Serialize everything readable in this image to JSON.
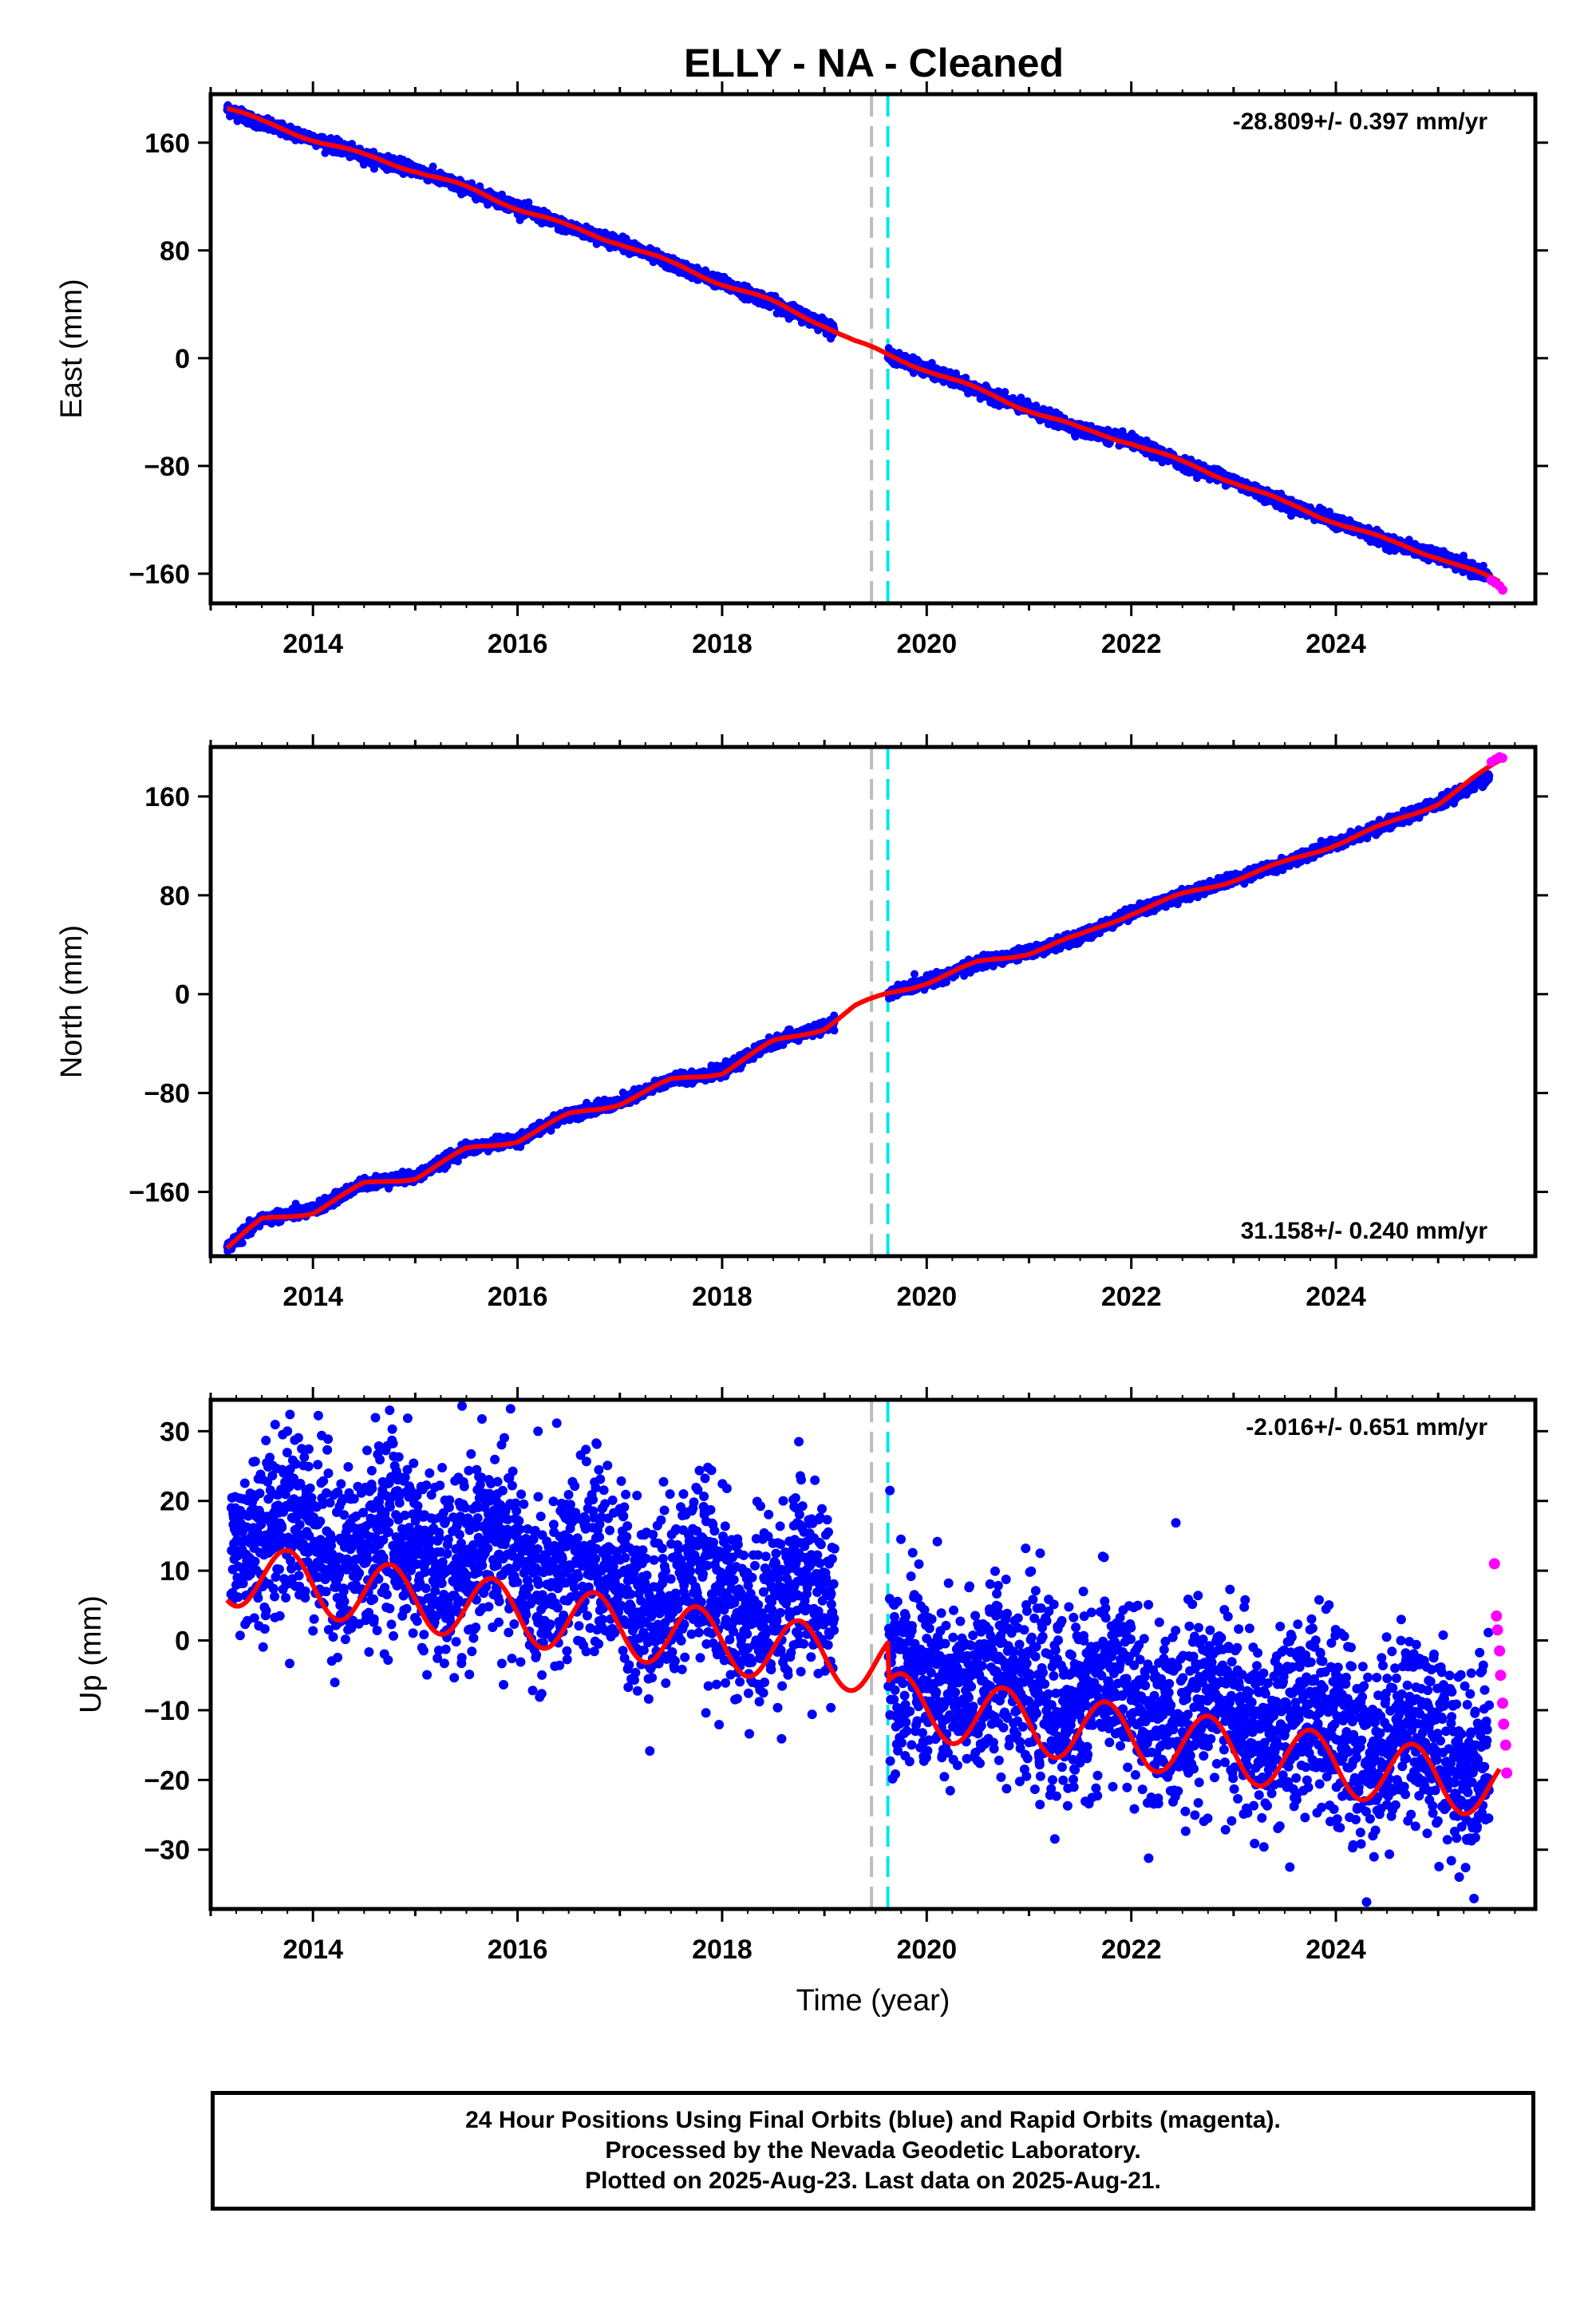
{
  "figure_title": "ELLY  - NA - Cleaned",
  "chart_data": [
    {
      "type": "scatter",
      "ylabel": "East (mm)",
      "xlabel": "",
      "xlim": [
        2013.0,
        2025.95
      ],
      "ylim": [
        -182,
        196
      ],
      "xticks": [
        2014,
        2016,
        2018,
        2020,
        2022,
        2024
      ],
      "yticks": [
        160,
        80,
        0,
        -80,
        -160
      ],
      "ytick_labels": [
        "160",
        "80",
        "0",
        "−80",
        "−160"
      ],
      "rate_label": "-28.809+/- 0.397 mm/yr",
      "rate_position": "top-right",
      "reference_lines": [
        {
          "x": 2019.46,
          "color": "#bdbdbd",
          "style": "dashed"
        },
        {
          "x": 2019.62,
          "color": "#00e5ee",
          "style": "dashed"
        }
      ],
      "gap": [
        2019.1,
        2019.62
      ],
      "series": [
        {
          "role": "final_orbits",
          "color": "#0000ff",
          "x": [
            2013.16,
            2013.5,
            2014.0,
            2014.5,
            2015.0,
            2015.5,
            2016.0,
            2016.5,
            2017.0,
            2017.5,
            2018.0,
            2018.5,
            2019.0,
            2019.62,
            2020.0,
            2020.5,
            2021.0,
            2021.5,
            2022.0,
            2022.5,
            2023.0,
            2023.5,
            2024.0,
            2024.5,
            2025.0,
            2025.5
          ],
          "y": [
            185,
            174,
            163,
            150,
            140,
            126,
            112,
            97,
            86,
            70,
            56,
            41,
            25,
            2,
            -8,
            -24,
            -38,
            -53,
            -62,
            -78,
            -91,
            -108,
            -121,
            -136,
            -147,
            -162
          ]
        },
        {
          "role": "rapid_orbits",
          "color": "#ff00ff",
          "x": [
            2025.52,
            2025.56,
            2025.6,
            2025.63
          ],
          "y": [
            -165,
            -167,
            -169,
            -172
          ]
        },
        {
          "role": "model_fit",
          "color": "#ff0000",
          "x": [
            2013.16,
            2013.5,
            2014.0,
            2014.5,
            2015.0,
            2015.5,
            2016.0,
            2016.5,
            2017.0,
            2017.5,
            2018.0,
            2018.5,
            2019.0,
            2019.3,
            2019.62,
            2020.0,
            2020.5,
            2021.0,
            2021.5,
            2022.0,
            2022.5,
            2023.0,
            2023.5,
            2024.0,
            2024.5,
            2025.0,
            2025.6
          ],
          "y": [
            186,
            175,
            163,
            150,
            140,
            126,
            112,
            97,
            86,
            70,
            56,
            41,
            25,
            12,
            2,
            -8,
            -24,
            -38,
            -53,
            -62,
            -78,
            -91,
            -108,
            -121,
            -136,
            -147,
            -167
          ]
        }
      ]
    },
    {
      "type": "scatter",
      "ylabel": "North (mm)",
      "xlabel": "",
      "xlim": [
        2013.0,
        2025.95
      ],
      "ylim": [
        -212,
        200
      ],
      "xticks": [
        2014,
        2016,
        2018,
        2020,
        2022,
        2024
      ],
      "yticks": [
        160,
        80,
        0,
        -80,
        -160
      ],
      "ytick_labels": [
        "160",
        "80",
        "0",
        "−80",
        "−160"
      ],
      "rate_label": "31.158+/- 0.240 mm/yr",
      "rate_position": "bottom-right",
      "reference_lines": [
        {
          "x": 2019.46,
          "color": "#bdbdbd",
          "style": "dashed"
        },
        {
          "x": 2019.62,
          "color": "#00e5ee",
          "style": "dashed"
        }
      ],
      "gap": [
        2019.1,
        2019.62
      ],
      "series": [
        {
          "role": "final_orbits",
          "color": "#0000ff",
          "x": [
            2013.16,
            2013.5,
            2014.0,
            2014.5,
            2015.0,
            2015.5,
            2016.0,
            2016.5,
            2017.0,
            2017.5,
            2018.0,
            2018.5,
            2019.0,
            2019.62,
            2020.0,
            2020.5,
            2021.0,
            2021.5,
            2022.0,
            2022.5,
            2023.0,
            2023.5,
            2024.0,
            2024.5,
            2025.0,
            2025.5
          ],
          "y": [
            -205,
            -182,
            -175,
            -153,
            -148,
            -125,
            -118,
            -97,
            -88,
            -69,
            -63,
            -38,
            -27,
            0,
            10,
            25,
            34,
            46,
            66,
            80,
            93,
            106,
            122,
            137,
            155,
            176
          ]
        },
        {
          "role": "rapid_orbits",
          "color": "#ff00ff",
          "x": [
            2025.52,
            2025.56,
            2025.6,
            2025.63
          ],
          "y": [
            188,
            190,
            192,
            191
          ]
        },
        {
          "role": "model_fit",
          "color": "#ff0000",
          "x": [
            2013.16,
            2013.5,
            2014.0,
            2014.5,
            2015.0,
            2015.5,
            2016.0,
            2016.5,
            2017.0,
            2017.5,
            2018.0,
            2018.5,
            2019.0,
            2019.3,
            2019.62,
            2020.0,
            2020.5,
            2021.0,
            2021.5,
            2022.0,
            2022.5,
            2023.0,
            2023.5,
            2024.0,
            2024.5,
            2025.0,
            2025.6
          ],
          "y": [
            -205,
            -183,
            -176,
            -154,
            -148,
            -126,
            -118,
            -98,
            -88,
            -70,
            -63,
            -39,
            -27,
            -10,
            0,
            10,
            25,
            34,
            47,
            66,
            80,
            93,
            106,
            122,
            137,
            155,
            188
          ]
        }
      ]
    },
    {
      "type": "scatter",
      "ylabel": "Up (mm)",
      "xlabel": "Time (year)",
      "xlim": [
        2013.0,
        2025.95
      ],
      "ylim": [
        -38.5,
        34.5
      ],
      "xticks": [
        2014,
        2016,
        2018,
        2020,
        2022,
        2024
      ],
      "yticks": [
        30,
        20,
        10,
        0,
        -10,
        -20,
        -30
      ],
      "ytick_labels": [
        "30",
        "20",
        "10",
        "0",
        "−10",
        "−20",
        "−30"
      ],
      "rate_label": "-2.016+/- 0.651 mm/yr",
      "rate_position": "top-right",
      "reference_lines": [
        {
          "x": 2019.46,
          "color": "#bdbdbd",
          "style": "dashed"
        },
        {
          "x": 2019.62,
          "color": "#00e5ee",
          "style": "dashed"
        }
      ],
      "gap": [
        2019.1,
        2019.62
      ],
      "seasonal_model": {
        "offset_before": 9.6,
        "offset_after": 4.0,
        "trend_per_year": -2.016,
        "annual_amplitude": 4.5,
        "peak_phase_year_fraction": 0.75,
        "start": 2013.16,
        "step_at": 2019.62
      },
      "scatter_spread": 6.5,
      "series": [
        {
          "role": "final_orbits",
          "color": "#0000ff",
          "x": [
            2013.2,
            2013.8,
            2014.3,
            2014.75,
            2015.3,
            2015.75,
            2016.25,
            2016.75,
            2017.3,
            2017.75,
            2018.25,
            2018.8,
            2019.65,
            2020.25,
            2020.75,
            2021.3,
            2021.8,
            2022.25,
            2022.8,
            2023.3,
            2023.75,
            2024.3,
            2024.75,
            2025.3,
            2025.5
          ],
          "y": [
            12,
            19,
            10,
            17,
            8,
            15,
            6,
            13,
            4,
            11,
            2,
            9,
            -2,
            -9,
            -3,
            -11,
            -5,
            -13,
            -7,
            -15,
            -9,
            -17,
            -11,
            -19,
            -14
          ]
        },
        {
          "role": "rapid_orbits",
          "color": "#ff00ff",
          "x": [
            2025.55,
            2025.57,
            2025.58,
            2025.6,
            2025.61,
            2025.63,
            2025.64,
            2025.66,
            2025.67
          ],
          "y": [
            11,
            3.5,
            1.5,
            -1.5,
            -5,
            -9,
            -12,
            -15,
            -19
          ]
        },
        {
          "role": "model_fit",
          "color": "#ff0000",
          "x": [
            2013.2,
            2013.8,
            2014.3,
            2014.75,
            2015.3,
            2015.75,
            2016.25,
            2016.75,
            2017.3,
            2017.75,
            2018.25,
            2018.8,
            2019.3,
            2019.62,
            2020.25,
            2020.75,
            2021.3,
            2021.8,
            2022.25,
            2022.8,
            2023.3,
            2023.75,
            2024.3,
            2024.75,
            2025.3,
            2025.6
          ],
          "y": [
            11,
            19,
            9.5,
            17,
            7.5,
            15,
            5.5,
            13,
            3.5,
            11,
            1.5,
            9,
            -0.5,
            1,
            -9,
            -3,
            -11,
            -5,
            -13,
            -7,
            -15,
            -9,
            -17,
            -11,
            -19,
            -13
          ]
        }
      ]
    }
  ],
  "footer": {
    "line1": "24 Hour Positions Using Final Orbits (blue) and Rapid Orbits (magenta).",
    "line2": "Processed by the Nevada Geodetic Laboratory.",
    "line3": "Plotted on 2025-Aug-23. Last data on 2025-Aug-21."
  }
}
